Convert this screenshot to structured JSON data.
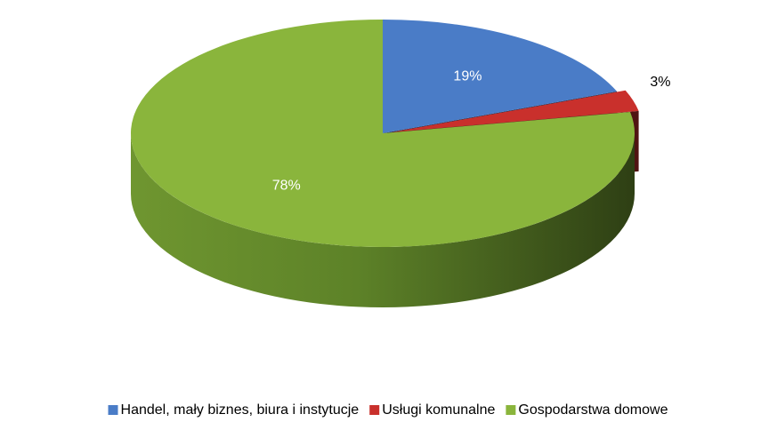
{
  "chart_data": {
    "type": "pie",
    "categories": [
      "Handel, mały biznes, biura i instytucje",
      "Usługi komunalne",
      "Gospodarstwa domowe"
    ],
    "values": [
      19,
      3,
      78
    ],
    "value_labels": [
      "19%",
      "3%",
      "78%"
    ],
    "colors": [
      "#4a7cc7",
      "#c9302c",
      "#8ab53c"
    ],
    "legend": "bottom"
  }
}
